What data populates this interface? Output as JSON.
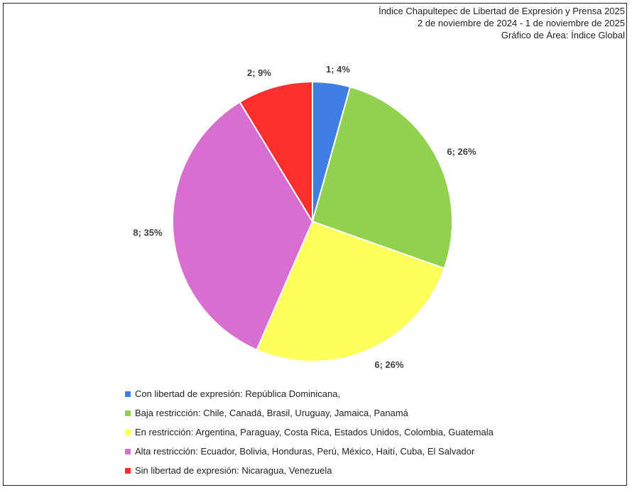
{
  "title_lines": [
    "Índice Chapultepec de Libertad de Expresión y Prensa 2025",
    "2 de noviembre de 2024 - 1 de noviembre de 2025",
    "Gráfico de Área: Índice Global"
  ],
  "chart_data": {
    "type": "pie",
    "title": "Índice Chapultepec de Libertad de Expresión y Prensa 2025",
    "subtitle": "2 de noviembre de 2024 - 1 de noviembre de 2025",
    "legend_position": "bottom",
    "slices": [
      {
        "label": "Con libertad de expresión: República Dominicana,",
        "value": 1,
        "percent": 4,
        "data_label": "1; 4%",
        "color": "#3F7FE3"
      },
      {
        "label": "Baja restricción: Chile, Canadá, Brasil, Uruguay, Jamaica, Panamá",
        "value": 6,
        "percent": 26,
        "data_label": "6; 26%",
        "color": "#92D050"
      },
      {
        "label": "En restricción: Argentina, Paraguay, Costa Rica, Estados Unidos, Colombia, Guatemala",
        "value": 6,
        "percent": 26,
        "data_label": "6; 26%",
        "color": "#FFFF59"
      },
      {
        "label": "Alta restricción: Ecuador, Bolivia, Honduras, Perú, México, Haití, Cuba, El Salvador",
        "value": 8,
        "percent": 35,
        "data_label": "8; 35%",
        "color": "#D86ED0"
      },
      {
        "label": "Sin libertad de expresión: Nicaragua, Venezuela",
        "value": 2,
        "percent": 9,
        "data_label": "2; 9%",
        "color": "#FF2E2E"
      }
    ]
  }
}
